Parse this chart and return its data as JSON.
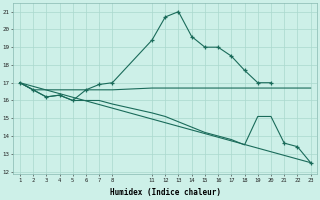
{
  "bg_color": "#cdf0e8",
  "grid_color": "#aad8ce",
  "line_color": "#1a6b5a",
  "xlabel": "Humidex (Indice chaleur)",
  "curve1_x": [
    1,
    2,
    3,
    4,
    5,
    6,
    7,
    8,
    11,
    12,
    13,
    14,
    15,
    16,
    17,
    18,
    19,
    20
  ],
  "curve1_y": [
    17.0,
    16.6,
    16.2,
    16.3,
    16.0,
    16.6,
    16.9,
    17.0,
    19.4,
    20.7,
    21.0,
    19.6,
    19.0,
    19.0,
    18.5,
    17.7,
    17.0,
    17.0
  ],
  "curve2_x": [
    1,
    2,
    3,
    4,
    5,
    6,
    7,
    8,
    11,
    12,
    13,
    14,
    15,
    16,
    17,
    18,
    19,
    20,
    21,
    22,
    23
  ],
  "curve2_y": [
    17.0,
    16.6,
    16.6,
    16.6,
    16.6,
    16.6,
    16.6,
    16.6,
    16.7,
    16.7,
    16.7,
    16.7,
    16.7,
    16.7,
    16.7,
    16.7,
    16.7,
    16.7,
    16.7,
    16.7,
    16.7
  ],
  "curve3_x": [
    1,
    2,
    3,
    4,
    5,
    6,
    7,
    8,
    11,
    12,
    13,
    14,
    15,
    16,
    17,
    18,
    19,
    20,
    21,
    22,
    23
  ],
  "curve3_y": [
    17.0,
    16.6,
    16.2,
    16.3,
    16.0,
    16.0,
    16.0,
    15.8,
    15.3,
    15.1,
    14.8,
    14.5,
    14.2,
    14.0,
    13.8,
    13.5,
    15.1,
    15.1,
    13.6,
    13.4,
    12.5
  ],
  "curve3_marker_idx": [
    18,
    19,
    20
  ],
  "curve4_x": [
    1,
    23
  ],
  "curve4_y": [
    17.0,
    12.5
  ],
  "ylim": [
    11.85,
    21.5
  ],
  "xlim": [
    0.5,
    23.5
  ],
  "yticks": [
    12,
    13,
    14,
    15,
    16,
    17,
    18,
    19,
    20,
    21
  ],
  "xticks": [
    1,
    2,
    3,
    4,
    5,
    6,
    7,
    8,
    11,
    12,
    13,
    14,
    15,
    16,
    17,
    18,
    19,
    20,
    21,
    22,
    23
  ]
}
